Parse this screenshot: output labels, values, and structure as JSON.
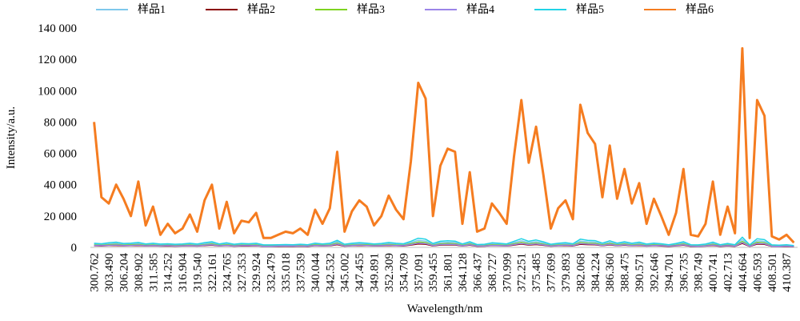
{
  "chart_data": {
    "type": "line",
    "x_label": "Wavelength/nm",
    "y_label": "Intensity/a.u.",
    "legend": "top",
    "ylim": [
      0,
      140000
    ],
    "yticks": [
      0,
      {
        "value": 20000,
        "label": "20 000"
      },
      {
        "value": 40000,
        "label": "40 000"
      },
      {
        "value": 60000,
        "label": "60 000"
      },
      {
        "value": 80000,
        "label": "80 000"
      },
      {
        "value": 100000,
        "label": "100 000"
      },
      {
        "value": 120000,
        "label": "120 000"
      },
      {
        "value": 140000,
        "label": "140 000"
      }
    ],
    "categories": [
      "300.762",
      null,
      "303.490",
      null,
      "306.204",
      null,
      "308.902",
      null,
      "311.585",
      null,
      "314.252",
      null,
      "316.904",
      null,
      "319.540",
      null,
      "322.161",
      null,
      "324.765",
      null,
      "327.353",
      null,
      "329.924",
      null,
      "332.479",
      null,
      "335.018",
      null,
      "337.539",
      null,
      "340.044",
      null,
      "342.532",
      null,
      "345.002",
      null,
      "347.455",
      null,
      "349.891",
      null,
      "352.309",
      null,
      "354.709",
      null,
      "357.091",
      null,
      "359.455",
      null,
      "361.801",
      null,
      "364.128",
      null,
      "366.437",
      null,
      "368.727",
      null,
      "370.999",
      null,
      "372.251",
      null,
      "375.485",
      null,
      "377.699",
      null,
      "379.893",
      null,
      "382.068",
      null,
      "384.224",
      null,
      "386.360",
      null,
      "388.475",
      null,
      "390.571",
      null,
      "392.646",
      null,
      "394.701",
      null,
      "396.735",
      null,
      "398.749",
      null,
      "400.741",
      null,
      "402.713",
      null,
      "404.664",
      null,
      "406.593",
      null,
      "408.501",
      null,
      "410.387",
      null
    ],
    "series": [
      {
        "name": "样品1",
        "color": "#7ec8ec",
        "values": [
          2000,
          1800,
          2200,
          2500,
          1900,
          2100,
          2400,
          1700,
          2000,
          1600,
          1800,
          1500,
          1700,
          2000,
          1600,
          2300,
          2800,
          1700,
          2200,
          1500,
          1900,
          1800,
          2000,
          1200,
          1200,
          1300,
          1400,
          1300,
          1500,
          1300,
          2100,
          1700,
          2000,
          3500,
          1500,
          2000,
          2300,
          2100,
          1700,
          1900,
          2400,
          2000,
          1800,
          3000,
          4500,
          4000,
          1900,
          3000,
          3200,
          3100,
          1700,
          2800,
          1400,
          1500,
          2200,
          2000,
          1700,
          3000,
          4200,
          3000,
          3600,
          2700,
          1500,
          2000,
          2300,
          1800,
          4000,
          3500,
          3300,
          2100,
          3200,
          2100,
          2800,
          2000,
          2500,
          1600,
          2100,
          1800,
          1300,
          1900,
          2800,
          1300,
          1200,
          1600,
          2500,
          1300,
          1900,
          1300,
          5000,
          1200,
          4200,
          3800,
          1200,
          1100,
          1300,
          900
        ]
      },
      {
        "name": "样品2",
        "color": "#8b0000",
        "values": [
          1000,
          900,
          1100,
          1200,
          950,
          1050,
          1200,
          850,
          1000,
          800,
          900,
          750,
          850,
          1000,
          800,
          1150,
          1400,
          850,
          1100,
          750,
          950,
          900,
          1000,
          600,
          600,
          650,
          700,
          650,
          750,
          650,
          1050,
          850,
          1000,
          1750,
          750,
          1000,
          1150,
          1050,
          850,
          950,
          1200,
          1000,
          900,
          1500,
          2200,
          2000,
          950,
          1500,
          1600,
          1550,
          850,
          1400,
          700,
          750,
          1100,
          1000,
          850,
          1500,
          2100,
          1500,
          1800,
          1350,
          750,
          1000,
          1150,
          900,
          2000,
          1750,
          1650,
          1050,
          1600,
          1050,
          1400,
          1000,
          1250,
          800,
          1050,
          900,
          650,
          950,
          1400,
          650,
          600,
          800,
          1250,
          650,
          950,
          650,
          2500,
          600,
          2100,
          1900,
          600,
          550,
          650,
          450
        ]
      },
      {
        "name": "样品3",
        "color": "#7ed321",
        "values": [
          1500,
          1350,
          1650,
          1900,
          1400,
          1600,
          1800,
          1300,
          1500,
          1200,
          1350,
          1100,
          1300,
          1500,
          1200,
          1700,
          2100,
          1300,
          1650,
          1100,
          1400,
          1350,
          1500,
          900,
          900,
          1000,
          1050,
          1000,
          1100,
          1000,
          1600,
          1300,
          1500,
          2600,
          1100,
          1500,
          1700,
          1600,
          1300,
          1400,
          1800,
          1500,
          1350,
          2250,
          3400,
          3000,
          1400,
          2250,
          2400,
          2300,
          1300,
          2100,
          1050,
          1100,
          1650,
          1500,
          1300,
          2250,
          3150,
          2250,
          2700,
          2000,
          1100,
          1500,
          1700,
          1350,
          3000,
          2600,
          2500,
          1600,
          2400,
          1600,
          2100,
          1500,
          1900,
          1200,
          1600,
          1350,
          1000,
          1400,
          2100,
          1000,
          900,
          1200,
          1900,
          1000,
          1400,
          1000,
          3750,
          900,
          3150,
          2850,
          900,
          800,
          1000,
          700
        ]
      },
      {
        "name": "样品4",
        "color": "#9b84e8",
        "values": [
          1200,
          1100,
          1300,
          1500,
          1150,
          1250,
          1450,
          1000,
          1200,
          950,
          1100,
          900,
          1000,
          1200,
          950,
          1400,
          1700,
          1000,
          1300,
          900,
          1150,
          1100,
          1200,
          700,
          700,
          800,
          850,
          800,
          900,
          800,
          1250,
          1000,
          1200,
          2100,
          900,
          1200,
          1400,
          1250,
          1000,
          1150,
          1450,
          1200,
          1100,
          1800,
          2700,
          2400,
          1150,
          1800,
          1900,
          1850,
          1000,
          1700,
          850,
          900,
          1300,
          1200,
          1000,
          1800,
          2500,
          1800,
          2150,
          1600,
          900,
          1200,
          1400,
          1100,
          2400,
          2100,
          2000,
          1250,
          1900,
          1250,
          1700,
          1200,
          1500,
          950,
          1250,
          1100,
          800,
          1150,
          1700,
          800,
          700,
          950,
          1500,
          800,
          1150,
          800,
          3000,
          700,
          2500,
          2300,
          700,
          650,
          800,
          550
        ]
      },
      {
        "name": "样品5",
        "color": "#22d3e6",
        "values": [
          2600,
          2300,
          2900,
          3300,
          2500,
          2700,
          3100,
          2200,
          2600,
          2100,
          2300,
          2000,
          2200,
          2600,
          2100,
          3000,
          3600,
          2200,
          2900,
          2000,
          2500,
          2300,
          2600,
          1600,
          1600,
          1700,
          1800,
          1700,
          2000,
          1700,
          2700,
          2200,
          2600,
          4500,
          2000,
          2600,
          3000,
          2700,
          2200,
          2500,
          3100,
          2600,
          2300,
          3900,
          5800,
          5200,
          2500,
          3900,
          4200,
          4000,
          2200,
          3600,
          1800,
          2000,
          2900,
          2600,
          2200,
          3900,
          5500,
          3900,
          4700,
          3500,
          2000,
          2600,
          3000,
          2300,
          5200,
          4500,
          4300,
          2700,
          4200,
          2700,
          3600,
          2600,
          3300,
          2100,
          2700,
          2300,
          1700,
          2500,
          3600,
          1700,
          1600,
          2100,
          3300,
          1700,
          2500,
          1700,
          6500,
          1600,
          5500,
          4900,
          1600,
          1400,
          1700,
          1200
        ]
      },
      {
        "name": "样品6",
        "color": "#f57c20",
        "values": [
          80000,
          32000,
          28000,
          40000,
          31000,
          20000,
          42000,
          14000,
          26000,
          8000,
          15000,
          9000,
          12000,
          21000,
          10000,
          30000,
          40000,
          12000,
          29000,
          9000,
          17000,
          16000,
          22000,
          6000,
          6000,
          8000,
          10000,
          9000,
          12000,
          8000,
          24000,
          15000,
          25000,
          61000,
          10000,
          23000,
          30000,
          26000,
          14000,
          20000,
          33000,
          24000,
          18000,
          55000,
          105000,
          95000,
          20000,
          52000,
          63000,
          61000,
          15000,
          48000,
          10000,
          12000,
          28000,
          22000,
          15000,
          58000,
          94000,
          54000,
          77000,
          46000,
          12000,
          25000,
          30000,
          18000,
          91000,
          73000,
          66000,
          32000,
          65000,
          31000,
          50000,
          28000,
          41000,
          15000,
          31000,
          20000,
          8000,
          22000,
          50000,
          8000,
          7000,
          15000,
          42000,
          8000,
          26000,
          9000,
          127000,
          6000,
          94000,
          84000,
          7000,
          5000,
          8000,
          3000
        ]
      }
    ]
  }
}
